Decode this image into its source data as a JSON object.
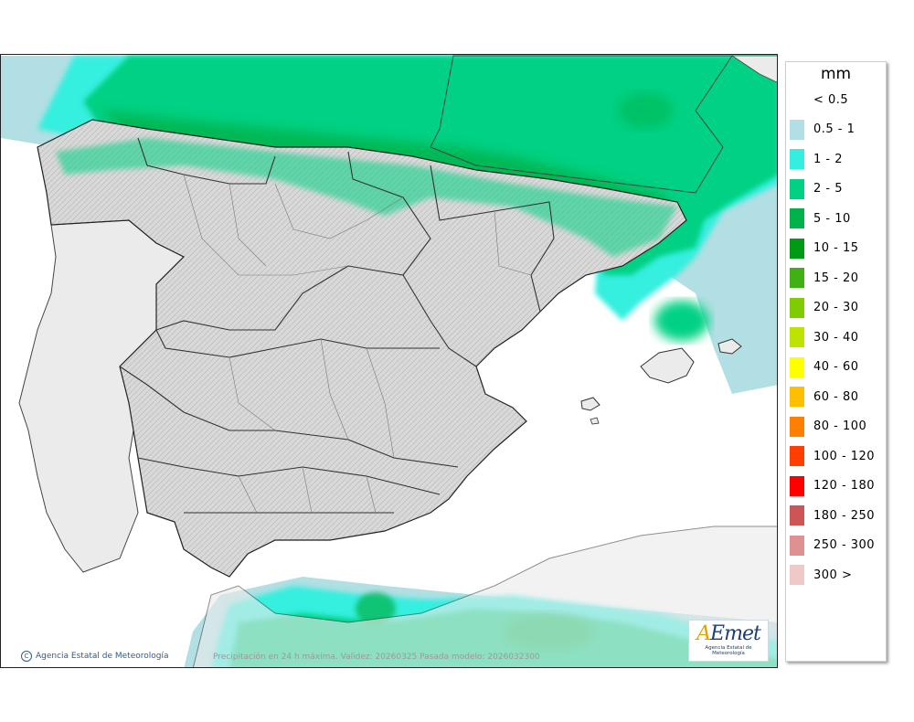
{
  "legend": {
    "unit": "mm",
    "items": [
      {
        "label": "< 0.5",
        "color": "#ffffff"
      },
      {
        "label": "0.5 - 1",
        "color": "#b2dfe3"
      },
      {
        "label": "1 - 2",
        "color": "#34efdf"
      },
      {
        "label": "2 - 5",
        "color": "#00d184"
      },
      {
        "label": "5 - 10",
        "color": "#00b24a"
      },
      {
        "label": "10 - 15",
        "color": "#009a14"
      },
      {
        "label": "15 - 20",
        "color": "#3fb114"
      },
      {
        "label": "20 - 30",
        "color": "#7fcc00"
      },
      {
        "label": "30 - 40",
        "color": "#bfe300"
      },
      {
        "label": "40 - 60",
        "color": "#ffff00"
      },
      {
        "label": "60 - 80",
        "color": "#ffbf00"
      },
      {
        "label": "80 - 100",
        "color": "#ff7f00"
      },
      {
        "label": "100 - 120",
        "color": "#ff3f00"
      },
      {
        "label": "120 - 180",
        "color": "#ff0000"
      },
      {
        "label": "180 - 250",
        "color": "#cd5555"
      },
      {
        "label": "250 - 300",
        "color": "#df9090"
      },
      {
        "label": "300 >",
        "color": "#efc8c8"
      }
    ]
  },
  "map": {
    "credit": "Agencia Estatal de Meteorología",
    "validity": "Precipitación en 24 h máxima. Validez: 20260325 Pasada modelo: 2026032300",
    "logo_text": "AEmet",
    "logo_subtitle": "Agencia Estatal de Meteorología"
  }
}
